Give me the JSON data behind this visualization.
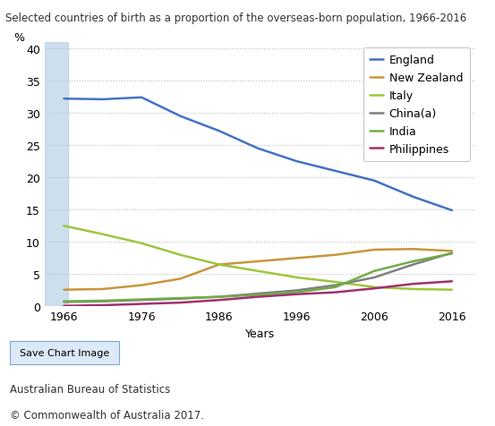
{
  "title": "Selected countries of birth as a proportion of the overseas-born population, 1966-2016",
  "xlabel": "Years",
  "ylabel": "%",
  "years": [
    1966,
    1971,
    1976,
    1981,
    1986,
    1991,
    1996,
    2001,
    2006,
    2011,
    2016
  ],
  "series": {
    "England": {
      "color": "#4472c4",
      "data": [
        32.2,
        32.1,
        32.4,
        29.5,
        27.2,
        24.5,
        22.5,
        21.0,
        19.5,
        17.0,
        14.9
      ]
    },
    "New Zealand": {
      "color": "#c8963c",
      "data": [
        2.6,
        2.7,
        3.3,
        4.3,
        6.5,
        7.0,
        7.5,
        8.0,
        8.8,
        8.9,
        8.6
      ]
    },
    "Italy": {
      "color": "#9dc63c",
      "data": [
        12.5,
        11.2,
        9.8,
        8.0,
        6.5,
        5.5,
        4.5,
        3.8,
        3.0,
        2.7,
        2.6
      ]
    },
    "China(a)": {
      "color": "#7f7f7f",
      "data": [
        0.7,
        0.8,
        1.0,
        1.2,
        1.5,
        2.0,
        2.5,
        3.3,
        4.5,
        6.5,
        8.3
      ]
    },
    "India": {
      "color": "#70ad47",
      "data": [
        0.8,
        0.9,
        1.1,
        1.3,
        1.5,
        1.8,
        2.2,
        3.0,
        5.5,
        7.0,
        8.2
      ]
    },
    "Philippines": {
      "color": "#a0306e",
      "data": [
        0.1,
        0.2,
        0.4,
        0.6,
        1.0,
        1.5,
        1.9,
        2.2,
        2.8,
        3.5,
        3.9
      ]
    }
  },
  "ylim": [
    0,
    41
  ],
  "yticks": [
    0,
    5,
    10,
    15,
    20,
    25,
    30,
    35,
    40
  ],
  "xticks": [
    1966,
    1976,
    1986,
    1996,
    2006,
    2016
  ],
  "xlim_left": 1963.5,
  "xlim_right": 2019,
  "background_color": "#ffffff",
  "grid_color": "#c0c0c0",
  "title_fontsize": 8.5,
  "axis_label_fontsize": 9,
  "tick_fontsize": 9,
  "legend_fontsize": 9,
  "linewidth": 1.8,
  "shade_color": "#b8d0e8",
  "footer_text1": "Australian Bureau of Statistics",
  "footer_text2": "© Commonwealth of Australia 2017.",
  "save_btn_text": "Save Chart Image"
}
